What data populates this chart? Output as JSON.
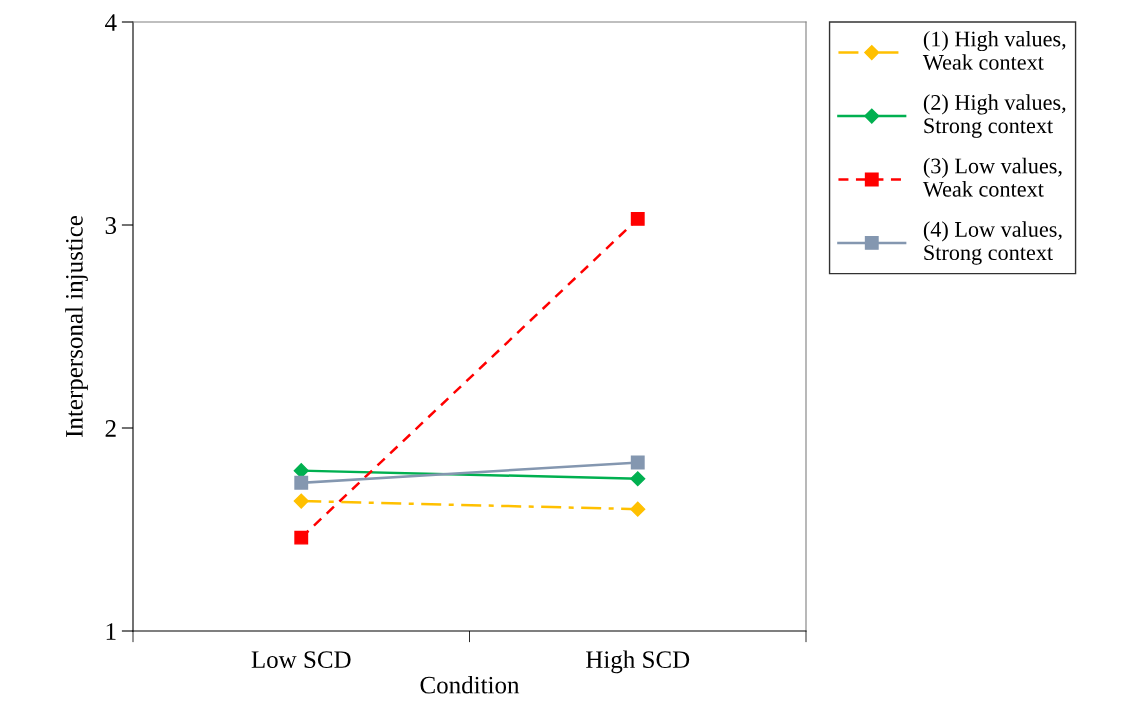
{
  "chart_data": {
    "type": "line",
    "xlabel": "Condition",
    "ylabel": "Interpersonal injustice",
    "categories": [
      "Low SCD",
      "High SCD"
    ],
    "ylim": [
      1,
      4
    ],
    "yticks": [
      1,
      2,
      3,
      4
    ],
    "grid": false,
    "legend": "right",
    "series": [
      {
        "name": "(1) High values,\nWeak context",
        "color": "#ffc000",
        "values": [
          1.64,
          1.6
        ],
        "marker": "diamond",
        "line_style": "dashdot"
      },
      {
        "name": "(2) High values,\nStrong context",
        "color": "#00b050",
        "values": [
          1.79,
          1.75
        ],
        "marker": "diamond",
        "line_style": "solid"
      },
      {
        "name": "(3) Low values,\nWeak context",
        "color": "#ff0000",
        "values": [
          1.46,
          3.03
        ],
        "marker": "square",
        "line_style": "dashed"
      },
      {
        "name": "(4) Low values,\nStrong context",
        "color": "#8497b0",
        "values": [
          1.73,
          1.83
        ],
        "marker": "square",
        "line_style": "solid"
      }
    ]
  }
}
